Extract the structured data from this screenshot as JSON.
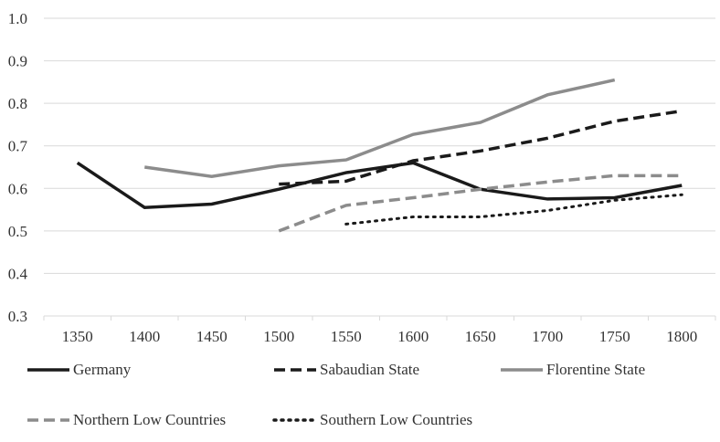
{
  "chart_data": {
    "type": "line",
    "x": [
      1350,
      1400,
      1450,
      1500,
      1550,
      1600,
      1650,
      1700,
      1750,
      1800
    ],
    "ylim": [
      0.3,
      1.0
    ],
    "yticks": [
      "0.3",
      "0.4",
      "0.5",
      "0.6",
      "0.7",
      "0.8",
      "0.9",
      "1.0"
    ],
    "grid": true,
    "legend_placement": "bottom",
    "series": [
      {
        "name": "Germany",
        "color": "#1a1a1a",
        "dash": "solid",
        "values": [
          0.66,
          0.555,
          0.563,
          0.598,
          0.637,
          0.66,
          0.598,
          0.575,
          0.578,
          0.607
        ]
      },
      {
        "name": "Sabaudian State",
        "color": "#1a1a1a",
        "dash": "dashed",
        "values": [
          null,
          null,
          null,
          0.61,
          0.617,
          0.665,
          0.688,
          0.718,
          0.758,
          0.782
        ]
      },
      {
        "name": "Florentine State",
        "color": "#8c8c8c",
        "dash": "solid",
        "values": [
          null,
          0.65,
          0.628,
          0.653,
          0.667,
          0.727,
          0.755,
          0.82,
          0.855,
          null
        ]
      },
      {
        "name": "Northern Low Countries",
        "color": "#8c8c8c",
        "dash": "dashed",
        "values": [
          null,
          null,
          null,
          0.5,
          0.56,
          0.578,
          0.598,
          0.615,
          0.63,
          0.63
        ]
      },
      {
        "name": "Southern Low Countries",
        "color": "#1a1a1a",
        "dash": "dotted",
        "values": [
          null,
          null,
          null,
          null,
          0.516,
          0.533,
          0.533,
          0.548,
          0.572,
          0.585
        ]
      }
    ]
  }
}
